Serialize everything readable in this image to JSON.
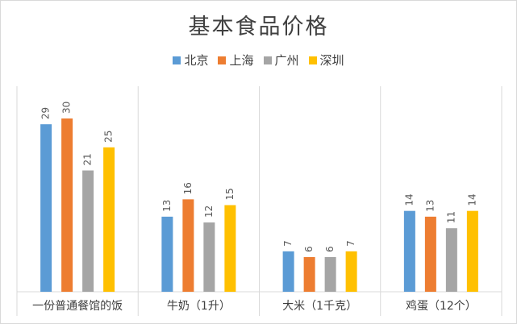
{
  "chart_data": {
    "type": "bar",
    "title": "基本食品价格",
    "categories": [
      "一份普通餐馆的饭",
      "牛奶（1升）",
      "大米（1千克）",
      "鸡蛋（12个）"
    ],
    "series": [
      {
        "name": "北京",
        "color": "#5b9bd5",
        "values": [
          29,
          13,
          7,
          14
        ]
      },
      {
        "name": "上海",
        "color": "#ed7d31",
        "values": [
          30,
          16,
          6,
          13
        ]
      },
      {
        "name": "广州",
        "color": "#a5a5a5",
        "values": [
          21,
          12,
          6,
          11
        ]
      },
      {
        "name": "深圳",
        "color": "#ffc000",
        "values": [
          25,
          15,
          7,
          14
        ]
      }
    ],
    "legend_position": "top",
    "grid": false,
    "ylim": [
      0,
      30
    ]
  }
}
